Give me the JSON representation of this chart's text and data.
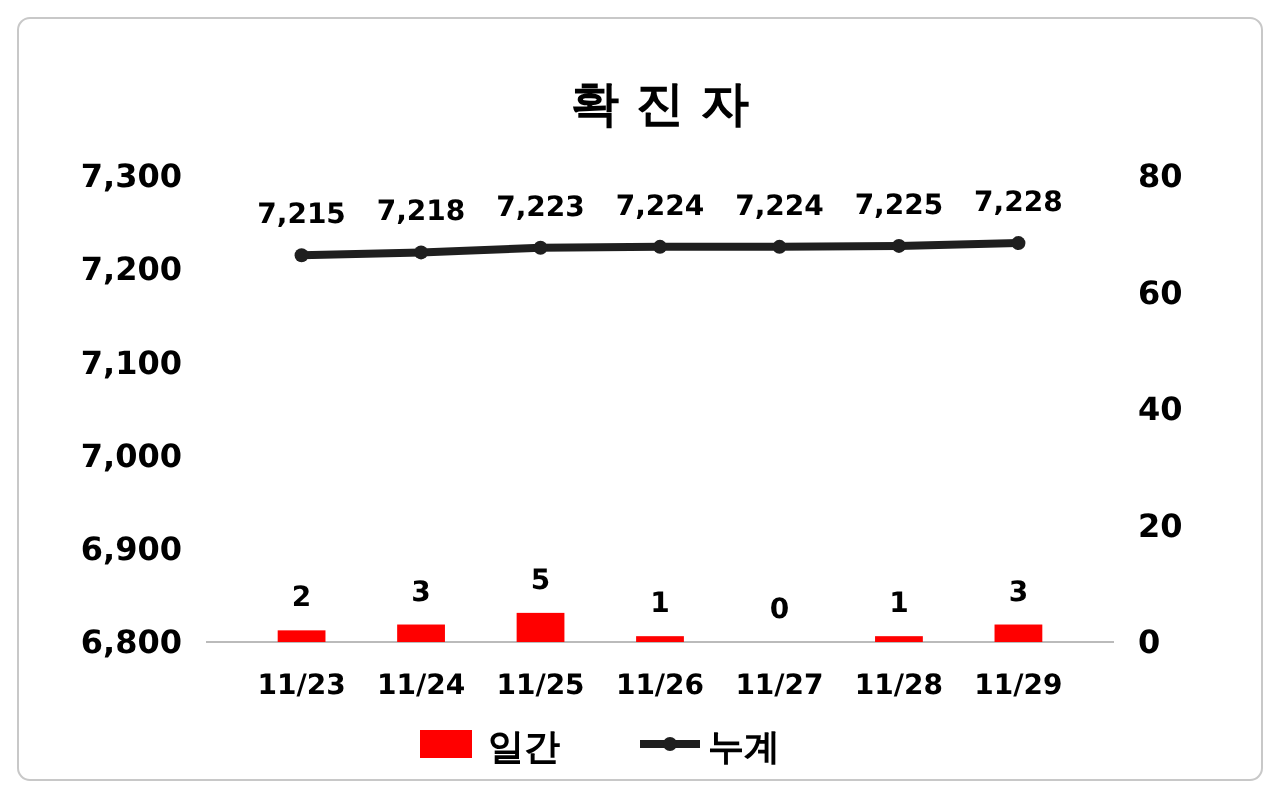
{
  "chart_data": {
    "type": "bar",
    "title": "확 진 자",
    "categories": [
      "11/23",
      "11/24",
      "11/25",
      "11/26",
      "11/27",
      "11/28",
      "11/29"
    ],
    "series": [
      {
        "name": "일간",
        "axis": "y2",
        "color": "#ff0000",
        "values": [
          2,
          3,
          5,
          1,
          0,
          1,
          3
        ]
      },
      {
        "name": "누계",
        "type": "line",
        "color": "#1f1f1f",
        "marker": "circle",
        "values": [
          7215,
          7218,
          7223,
          7224,
          7224,
          7225,
          7228
        ],
        "value_labels": [
          "7,215",
          "7,218",
          "7,223",
          "7,224",
          "7,224",
          "7,225",
          "7,228"
        ]
      }
    ],
    "ylim": [
      6800,
      7300
    ],
    "yticks": [
      {
        "value": 6800,
        "label": "6,800"
      },
      {
        "value": 6900,
        "label": "6,900"
      },
      {
        "value": 7000,
        "label": "7,000"
      },
      {
        "value": 7100,
        "label": "7,100"
      },
      {
        "value": 7200,
        "label": "7,200"
      },
      {
        "value": 7300,
        "label": "7,300"
      }
    ],
    "y2lim": [
      0,
      80
    ],
    "y2ticks": [
      0,
      20,
      40,
      60,
      80
    ],
    "data_labels": true,
    "grid": false,
    "legend": "bottom"
  }
}
